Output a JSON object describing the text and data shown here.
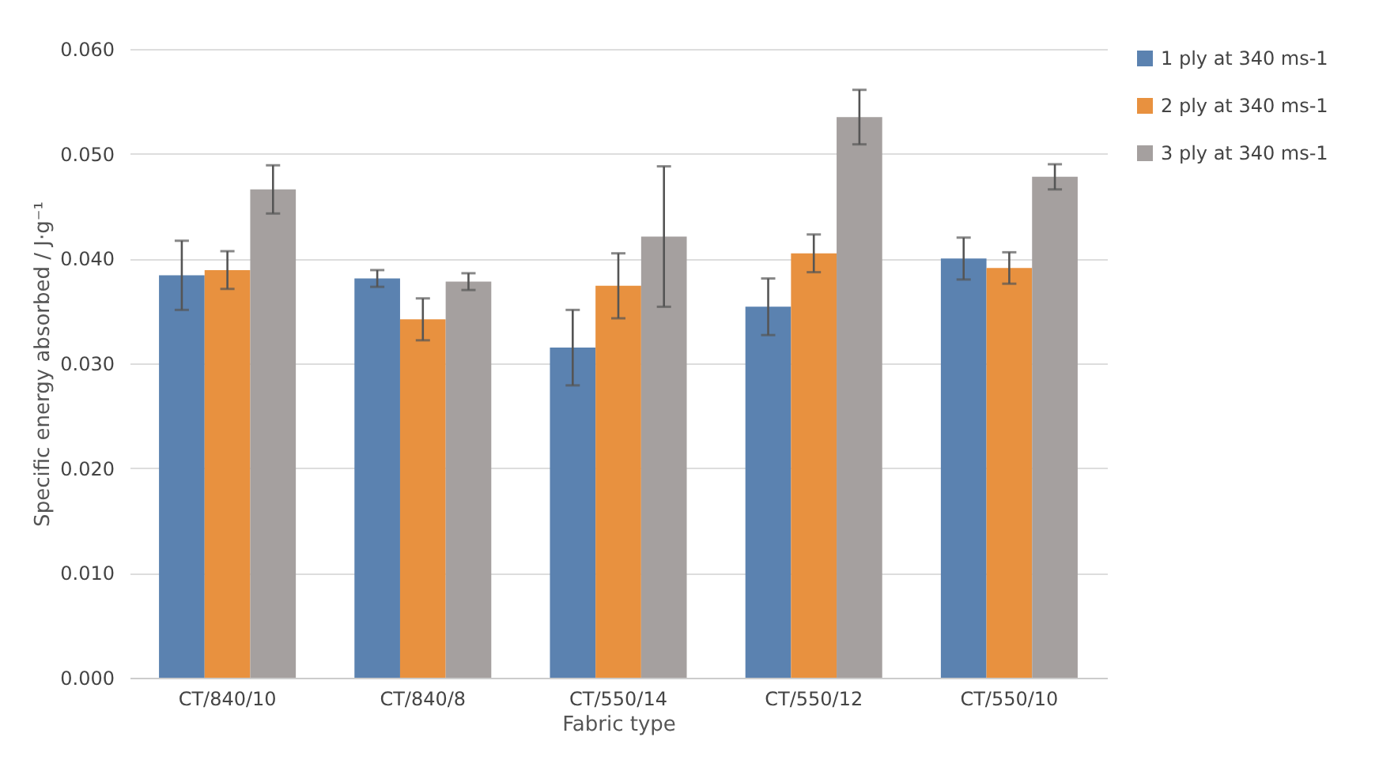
{
  "chart_data": {
    "type": "bar",
    "xlabel": "Fabric type",
    "ylabel": "Specific energy absorbed / J·g⁻¹",
    "categories": [
      "CT/840/10",
      "CT/840/8",
      "CT/550/14",
      "CT/550/12",
      "CT/550/10"
    ],
    "series": [
      {
        "name": "1 ply at 340 ms-1",
        "color": "#5b82b0",
        "values": [
          0.0384,
          0.0381,
          0.0315,
          0.0354,
          0.04
        ],
        "errors": [
          0.0033,
          0.0008,
          0.0036,
          0.0027,
          0.002
        ]
      },
      {
        "name": "2 ply at 340 ms-1",
        "color": "#e8913f",
        "values": [
          0.0389,
          0.0342,
          0.0374,
          0.0405,
          0.0391
        ],
        "errors": [
          0.0018,
          0.002,
          0.0031,
          0.0018,
          0.0015
        ]
      },
      {
        "name": "3 ply at 340 ms-1",
        "color": "#a5a09f",
        "values": [
          0.0466,
          0.0378,
          0.0421,
          0.0535,
          0.0478
        ],
        "errors": [
          0.0023,
          0.0008,
          0.0067,
          0.0026,
          0.0012
        ]
      }
    ],
    "ylim": [
      0,
      0.06
    ],
    "yticks": [
      {
        "value": 0,
        "label": "0.000"
      },
      {
        "value": 0.01,
        "label": "0.010"
      },
      {
        "value": 0.02,
        "label": "0.020"
      },
      {
        "value": 0.03,
        "label": "0.030"
      },
      {
        "value": 0.04,
        "label": "0.040"
      },
      {
        "value": 0.05,
        "label": "0.050"
      },
      {
        "value": 0.06,
        "label": "0.060"
      }
    ],
    "grid": "y",
    "legend": "right"
  }
}
